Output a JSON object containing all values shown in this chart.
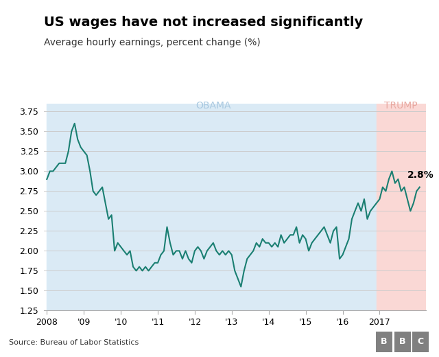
{
  "title": "US wages have not increased significantly",
  "subtitle": "Average hourly earnings, percent change (%)",
  "source": "Source: Bureau of Labor Statistics",
  "obama_label": "OBAMA",
  "trump_label": "TRUMP",
  "obama_color": "#daeaf5",
  "trump_color": "#fad8d5",
  "obama_start": 2008.0,
  "obama_end": 2016.917,
  "trump_start": 2016.917,
  "trump_end": 2018.25,
  "line_color": "#1a7f72",
  "annotation": "2.8%",
  "ylim": [
    1.25,
    3.85
  ],
  "yticks": [
    1.25,
    1.5,
    1.75,
    2.0,
    2.25,
    2.5,
    2.75,
    3.0,
    3.25,
    3.5,
    3.75
  ],
  "xlim": [
    2007.92,
    2018.25
  ],
  "xtick_positions": [
    2008,
    2009,
    2010,
    2011,
    2012,
    2013,
    2014,
    2015,
    2016,
    2017
  ],
  "xtick_labels": [
    "2008",
    "'09",
    "'10",
    "'11",
    "'12",
    "'13",
    "'14",
    "'15",
    "'16",
    "2017"
  ],
  "bbc_box_color": "#808080",
  "dates": [
    2008.0,
    2008.083,
    2008.167,
    2008.25,
    2008.333,
    2008.417,
    2008.5,
    2008.583,
    2008.667,
    2008.75,
    2008.833,
    2008.917,
    2009.0,
    2009.083,
    2009.167,
    2009.25,
    2009.333,
    2009.417,
    2009.5,
    2009.583,
    2009.667,
    2009.75,
    2009.833,
    2009.917,
    2010.0,
    2010.083,
    2010.167,
    2010.25,
    2010.333,
    2010.417,
    2010.5,
    2010.583,
    2010.667,
    2010.75,
    2010.833,
    2010.917,
    2011.0,
    2011.083,
    2011.167,
    2011.25,
    2011.333,
    2011.417,
    2011.5,
    2011.583,
    2011.667,
    2011.75,
    2011.833,
    2011.917,
    2012.0,
    2012.083,
    2012.167,
    2012.25,
    2012.333,
    2012.417,
    2012.5,
    2012.583,
    2012.667,
    2012.75,
    2012.833,
    2012.917,
    2013.0,
    2013.083,
    2013.167,
    2013.25,
    2013.333,
    2013.417,
    2013.5,
    2013.583,
    2013.667,
    2013.75,
    2013.833,
    2013.917,
    2014.0,
    2014.083,
    2014.167,
    2014.25,
    2014.333,
    2014.417,
    2014.5,
    2014.583,
    2014.667,
    2014.75,
    2014.833,
    2014.917,
    2015.0,
    2015.083,
    2015.167,
    2015.25,
    2015.333,
    2015.417,
    2015.5,
    2015.583,
    2015.667,
    2015.75,
    2015.833,
    2015.917,
    2016.0,
    2016.083,
    2016.167,
    2016.25,
    2016.333,
    2016.417,
    2016.5,
    2016.583,
    2016.667,
    2016.75,
    2016.833,
    2016.917,
    2017.0,
    2017.083,
    2017.167,
    2017.25,
    2017.333,
    2017.417,
    2017.5,
    2017.583,
    2017.667,
    2017.75,
    2017.833,
    2017.917,
    2018.0,
    2018.083
  ],
  "values": [
    2.9,
    3.0,
    3.0,
    3.05,
    3.1,
    3.1,
    3.1,
    3.25,
    3.5,
    3.6,
    3.4,
    3.3,
    3.25,
    3.2,
    3.0,
    2.75,
    2.7,
    2.75,
    2.8,
    2.6,
    2.4,
    2.45,
    2.0,
    2.1,
    2.05,
    2.0,
    1.95,
    2.0,
    1.8,
    1.75,
    1.8,
    1.75,
    1.8,
    1.75,
    1.8,
    1.85,
    1.85,
    1.95,
    2.0,
    2.3,
    2.1,
    1.95,
    2.0,
    2.0,
    1.9,
    2.0,
    1.9,
    1.85,
    2.0,
    2.05,
    2.0,
    1.9,
    2.0,
    2.05,
    2.1,
    2.0,
    1.95,
    2.0,
    1.95,
    2.0,
    1.95,
    1.75,
    1.65,
    1.55,
    1.75,
    1.9,
    1.95,
    2.0,
    2.1,
    2.05,
    2.15,
    2.1,
    2.1,
    2.05,
    2.1,
    2.05,
    2.2,
    2.1,
    2.15,
    2.2,
    2.2,
    2.3,
    2.1,
    2.2,
    2.15,
    2.0,
    2.1,
    2.15,
    2.2,
    2.25,
    2.3,
    2.2,
    2.1,
    2.25,
    2.3,
    1.9,
    1.95,
    2.05,
    2.15,
    2.4,
    2.5,
    2.6,
    2.5,
    2.65,
    2.4,
    2.5,
    2.55,
    2.6,
    2.65,
    2.8,
    2.75,
    2.9,
    3.0,
    2.85,
    2.9,
    2.75,
    2.8,
    2.65,
    2.5,
    2.6,
    2.75,
    2.8
  ]
}
